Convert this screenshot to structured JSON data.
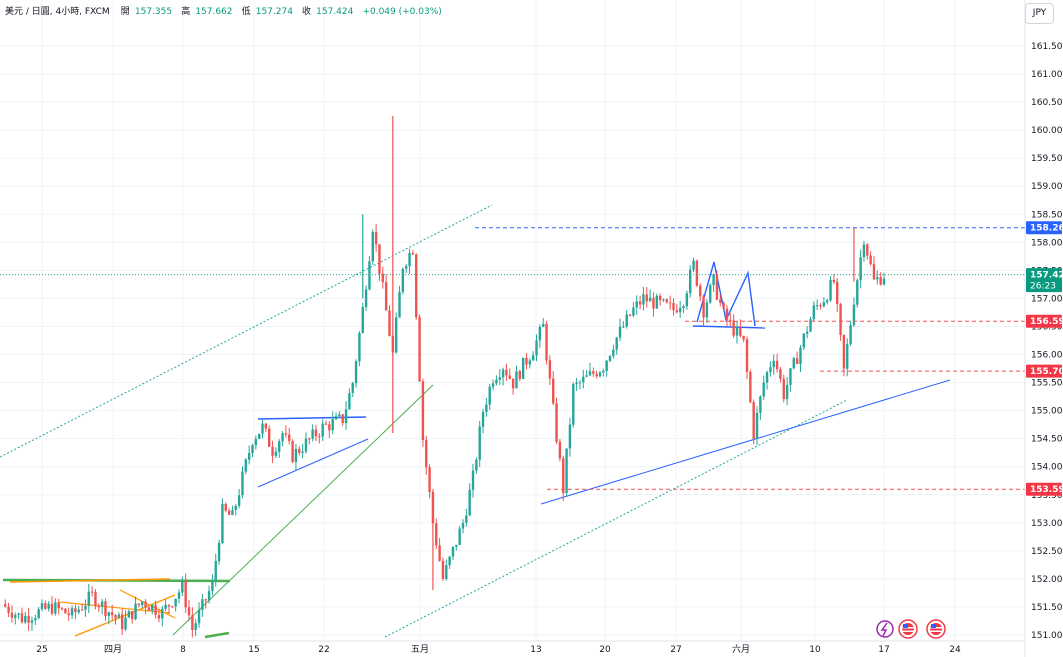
{
  "header": {
    "symbol": "美元 / 日圓, 4小時, FXCM",
    "open_label": "開",
    "open_value": "157.355",
    "high_label": "高",
    "high_value": "157.662",
    "low_label": "低",
    "low_value": "157.274",
    "close_label": "收",
    "close_value": "157.424",
    "change": "+0.049 (+0.03%)"
  },
  "currency": "JPY",
  "colors": {
    "up": "#26a69a",
    "down": "#ef5350",
    "blue": "#2962ff",
    "green": "#4caf50",
    "orange": "#ff9800",
    "dotted_green": "#26a69a",
    "grid": "#f0f3fa"
  },
  "chart_data": {
    "type": "candlestick",
    "y_ticks": [
      "161.500",
      "161.000",
      "160.500",
      "160.000",
      "159.500",
      "159.000",
      "158.500",
      "158.000",
      "157.500",
      "157.000",
      "156.500",
      "156.000",
      "155.500",
      "155.000",
      "154.500",
      "154.000",
      "153.500",
      "153.000",
      "152.500",
      "152.000",
      "151.500",
      "151.000"
    ],
    "ylim": [
      151.0,
      161.8
    ],
    "x_ticks": [
      "25",
      "四月",
      "8",
      "15",
      "22",
      "五月",
      "13",
      "20",
      "27",
      "六月",
      "10",
      "17",
      "24"
    ],
    "price_labels": [
      {
        "value": "158.261",
        "color": "#2962ff"
      },
      {
        "value": "157.424",
        "color": "#089981",
        "countdown": "26:23"
      },
      {
        "value": "156.594",
        "color": "#f23645"
      },
      {
        "value": "155.704",
        "color": "#f23645"
      },
      {
        "value": "153.599",
        "color": "#f23645"
      }
    ],
    "path_points": [
      [
        151.55,
        "2024-03-21"
      ],
      [
        151.3,
        "2024-03-23"
      ],
      [
        151.5,
        "2024-03-26"
      ],
      [
        151.35,
        "2024-03-28"
      ],
      [
        151.7,
        "2024-03-30"
      ],
      [
        151.2,
        "2024-04-02"
      ],
      [
        151.6,
        "2024-04-04"
      ],
      [
        151.4,
        "2024-04-06"
      ],
      [
        151.85,
        "2024-04-08"
      ],
      [
        151.1,
        "2024-04-09"
      ],
      [
        151.5,
        "2024-04-10"
      ],
      [
        151.9,
        "2024-04-11"
      ],
      [
        153.2,
        "2024-04-12"
      ],
      [
        153.1,
        "2024-04-13"
      ],
      [
        154.5,
        "2024-04-15"
      ],
      [
        154.7,
        "2024-04-16"
      ],
      [
        154.3,
        "2024-04-17"
      ],
      [
        154.6,
        "2024-04-18"
      ],
      [
        154.2,
        "2024-04-19"
      ],
      [
        154.7,
        "2024-04-22"
      ],
      [
        154.85,
        "2024-04-24"
      ],
      [
        155.5,
        "2024-04-25"
      ],
      [
        156.8,
        "2024-04-26"
      ],
      [
        158.3,
        "2024-04-27"
      ],
      [
        156.0,
        "2024-04-29"
      ],
      [
        157.6,
        "2024-04-30"
      ],
      [
        157.9,
        "2024-05-01"
      ],
      [
        154.5,
        "2024-05-02"
      ],
      [
        153.0,
        "2024-05-03"
      ],
      [
        152.0,
        "2024-05-04"
      ],
      [
        153.0,
        "2024-05-06"
      ],
      [
        153.8,
        "2024-05-07"
      ],
      [
        155.0,
        "2024-05-08"
      ],
      [
        155.6,
        "2024-05-09"
      ],
      [
        155.8,
        "2024-05-10"
      ],
      [
        155.5,
        "2024-05-11"
      ],
      [
        156.1,
        "2024-05-13"
      ],
      [
        156.5,
        "2024-05-14"
      ],
      [
        155.0,
        "2024-05-15"
      ],
      [
        153.6,
        "2024-05-16"
      ],
      [
        155.4,
        "2024-05-17"
      ],
      [
        155.8,
        "2024-05-20"
      ],
      [
        156.2,
        "2024-05-21"
      ],
      [
        156.8,
        "2024-05-23"
      ],
      [
        157.0,
        "2024-05-24"
      ],
      [
        156.8,
        "2024-05-27"
      ],
      [
        157.0,
        "2024-05-28"
      ],
      [
        157.6,
        "2024-05-29"
      ],
      [
        156.8,
        "2024-05-30"
      ],
      [
        157.3,
        "2024-05-31"
      ],
      [
        156.7,
        "2024-06-01"
      ],
      [
        156.2,
        "2024-06-03"
      ],
      [
        154.6,
        "2024-06-04"
      ],
      [
        155.5,
        "2024-06-05"
      ],
      [
        156.0,
        "2024-06-06"
      ],
      [
        155.3,
        "2024-06-07"
      ],
      [
        156.8,
        "2024-06-10"
      ],
      [
        157.0,
        "2024-06-11"
      ],
      [
        157.3,
        "2024-06-12"
      ],
      [
        155.7,
        "2024-06-13"
      ],
      [
        157.0,
        "2024-06-14"
      ],
      [
        158.1,
        "2024-06-15"
      ],
      [
        157.3,
        "2024-06-16"
      ],
      [
        157.42,
        "2024-06-17"
      ]
    ]
  }
}
